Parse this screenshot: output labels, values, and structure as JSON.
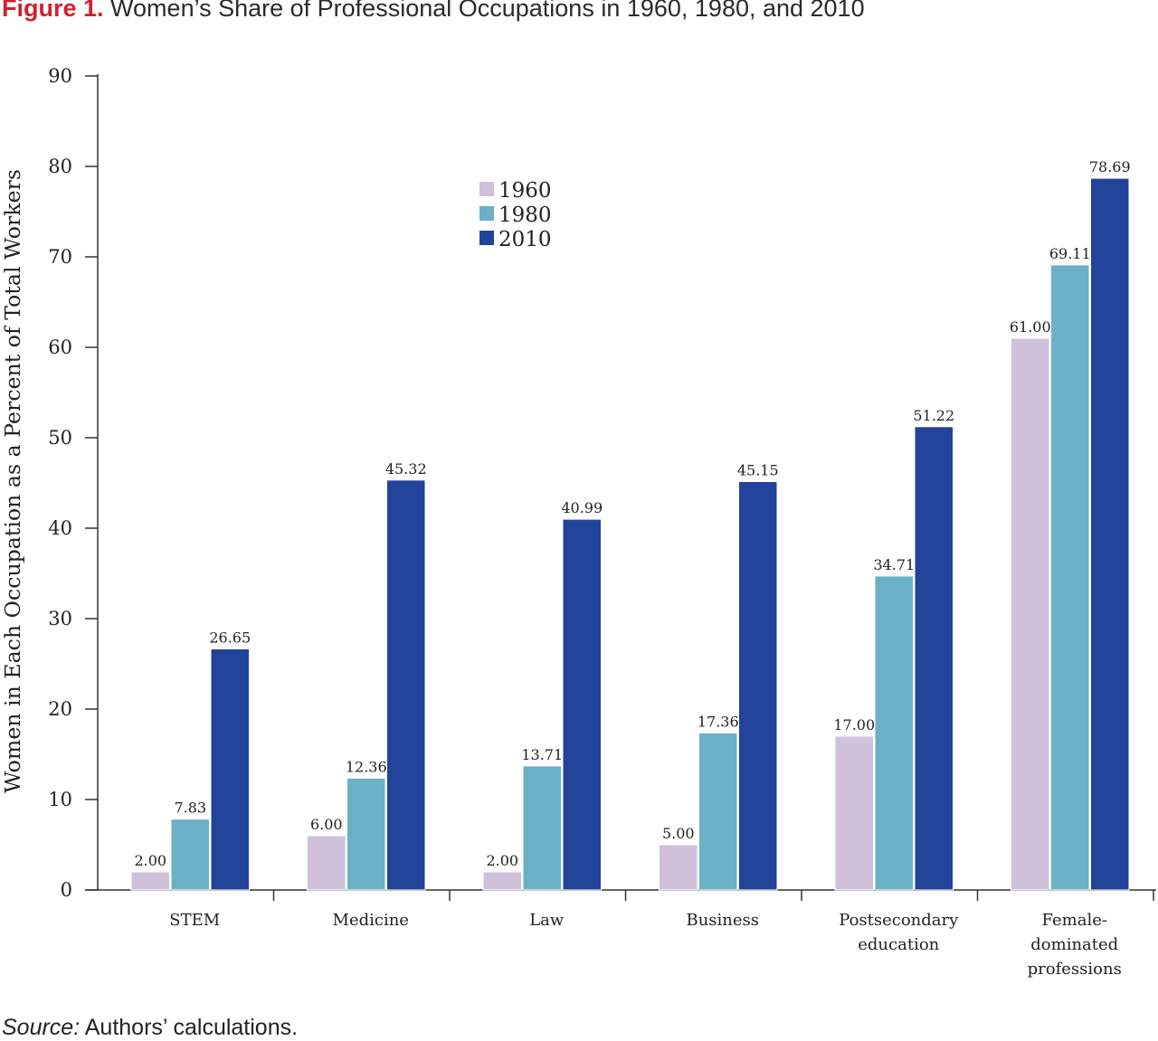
{
  "figure": {
    "label": "Figure 1.",
    "title": "Women’s Share of Professional Occupations in 1960, 1980, and 2010"
  },
  "source": {
    "label": "Source:",
    "text": "Authors’ calculations."
  },
  "colors": {
    "1960": "#cfc0dc",
    "1980": "#6ab1c7",
    "2010": "#21439a",
    "axis": "#333333",
    "title_label": "#d4202c"
  },
  "chart_data": {
    "type": "bar",
    "title": "",
    "ylabel": "Women in Each Occupation as a Percent of Total Workers",
    "xlabel": "",
    "ylim": [
      0,
      90
    ],
    "yticks": [
      0,
      10,
      20,
      30,
      40,
      50,
      60,
      70,
      80,
      90
    ],
    "grid": false,
    "legend_position": "top-center",
    "categories": [
      [
        "STEM"
      ],
      [
        "Medicine"
      ],
      [
        "Law"
      ],
      [
        "Business"
      ],
      [
        "Postsecondary",
        "education"
      ],
      [
        "Female-",
        "dominated",
        "professions"
      ]
    ],
    "series": [
      {
        "name": "1960",
        "values": [
          2.0,
          6.0,
          2.0,
          5.0,
          17.0,
          61.0
        ],
        "labels": [
          "2.00",
          "6.00",
          "2.00",
          "5.00",
          "17.00",
          "61.00"
        ]
      },
      {
        "name": "1980",
        "values": [
          7.83,
          12.36,
          13.71,
          17.36,
          34.71,
          69.11
        ],
        "labels": [
          "7.83",
          "12.36",
          "13.71",
          "17.36",
          "34.71",
          "69.11"
        ]
      },
      {
        "name": "2010",
        "values": [
          26.65,
          45.32,
          40.99,
          45.15,
          51.22,
          78.69
        ],
        "labels": [
          "26.65",
          "45.32",
          "40.99",
          "45.15",
          "51.22",
          "78.69"
        ]
      }
    ]
  }
}
